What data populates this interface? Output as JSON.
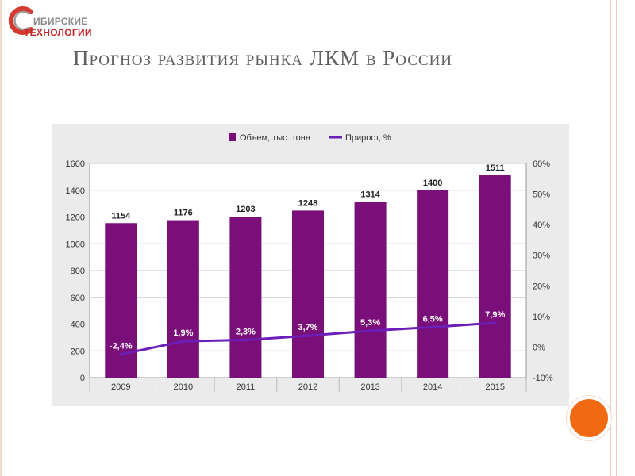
{
  "logo": {
    "line1": "ИБИРСКИЕ",
    "line2": "ТЕХНОЛОГИИ"
  },
  "slide": {
    "title": "Прогноз развития рынка ЛКМ в России"
  },
  "chart_data": {
    "type": "bar",
    "categories": [
      "2009",
      "2010",
      "2011",
      "2012",
      "2013",
      "2014",
      "2015"
    ],
    "series": [
      {
        "name": "Объем, тыс. тонн",
        "type": "bar",
        "axis": "left",
        "color": "#7a0f7a",
        "values": [
          1154,
          1176,
          1203,
          1248,
          1314,
          1400,
          1511
        ],
        "labels": [
          "1154",
          "1176",
          "1203",
          "1248",
          "1314",
          "1400",
          "1511"
        ]
      },
      {
        "name": "Прирост, %",
        "type": "line",
        "axis": "right",
        "color": "#6b1fb8",
        "values": [
          -2.4,
          1.9,
          2.3,
          3.7,
          5.3,
          6.5,
          7.9
        ],
        "labels": [
          "-2,4%",
          "1,9%",
          "2,3%",
          "3,7%",
          "5,3%",
          "6,5%",
          "7,9%"
        ]
      }
    ],
    "y_left": {
      "min": 0,
      "max": 1600,
      "ticks": [
        "0",
        "200",
        "400",
        "600",
        "800",
        "1000",
        "1200",
        "1400",
        "1600"
      ]
    },
    "y_right": {
      "min": -10,
      "max": 60,
      "ticks": [
        "-10%",
        "0%",
        "10%",
        "20%",
        "30%",
        "40%",
        "50%",
        "60%"
      ]
    },
    "legend_position": "top-center",
    "grid": true
  },
  "colors": {
    "bar": "#7a0f7a",
    "line": "#6b1fb8",
    "logo_red": "#c62828",
    "accent_orange": "#f16a12",
    "chart_bg": "#ebebeb"
  }
}
